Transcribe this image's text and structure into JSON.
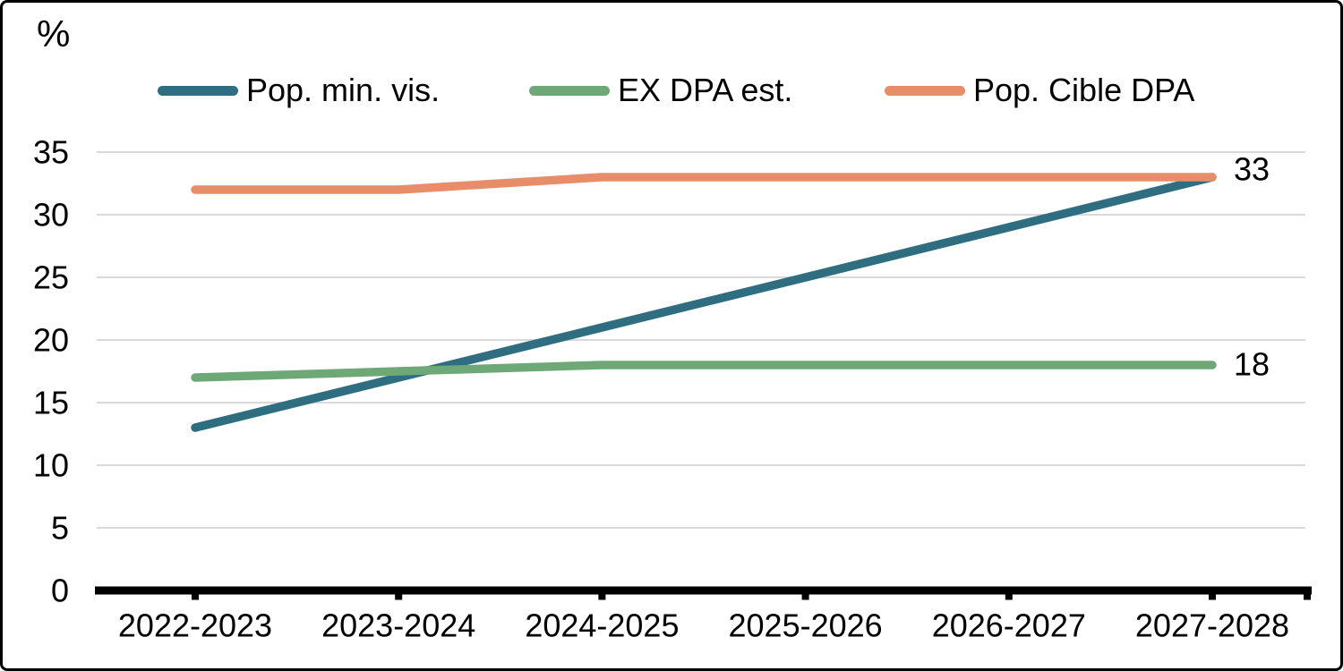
{
  "chart_data": {
    "type": "line",
    "categories": [
      "2022-2023",
      "2023-2024",
      "2024-2025",
      "2025-2026",
      "2026-2027",
      "2027-2028"
    ],
    "series": [
      {
        "name": "Pop. min. vis.",
        "color": "#2E6E80",
        "values": [
          13,
          17,
          21,
          25,
          29,
          33
        ]
      },
      {
        "name": "EX DPA est.",
        "color": "#6EA876",
        "values": [
          17,
          17.5,
          18,
          18,
          18,
          18
        ],
        "end_label": "18"
      },
      {
        "name": "Pop. Cible DPA",
        "color": "#E88D69",
        "values": [
          32,
          32,
          33,
          33,
          33,
          33
        ],
        "end_label": "33"
      }
    ],
    "ylabel": "%",
    "yticks": [
      0,
      5,
      10,
      15,
      20,
      25,
      30,
      35
    ],
    "ylim": [
      0,
      37.5
    ],
    "grid": true,
    "legend_position": "top"
  },
  "colors": {
    "background": "#FFFFFF",
    "border": "#000000",
    "grid": "#D9D9D9",
    "axis": "#000000",
    "text": "#000000"
  }
}
